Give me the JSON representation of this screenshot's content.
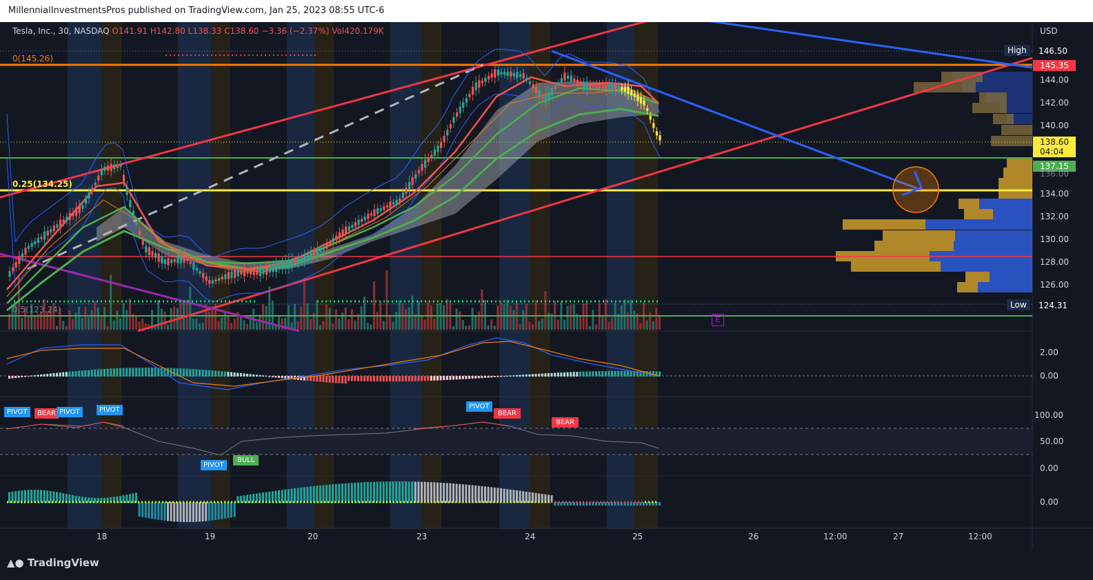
{
  "header": {
    "publish_line": "MillennialInvestmentsPros published on TradingView.com, Jan 25, 2023 08:55 UTC-6"
  },
  "symbol": {
    "name": "Tesla, Inc., 30, NASDAQ",
    "open": "O141.91",
    "high": "H142.80",
    "low": "L138.33",
    "close": "C138.60",
    "change": "−3.36 (−2.37%)",
    "volume": "Vol420.179K",
    "currency": "USD"
  },
  "fib_labels": {
    "level_0": "0(145.26)",
    "level_025": "0.25(134.25)",
    "level_05": "0.5(123.24)"
  },
  "price_axis": {
    "ticks": [
      "144.00",
      "142.00",
      "140.00",
      "136.00",
      "134.00",
      "132.00",
      "130.00",
      "128.00",
      "126.00"
    ],
    "high_label": "High",
    "high_value": "146.50",
    "level_145": "145.35",
    "current_price": "138.60",
    "countdown": "04:04",
    "level_137": "137.15",
    "low_label": "Low",
    "low_value": "124.31"
  },
  "macd_axis": [
    "2.00",
    "0.00"
  ],
  "rsi_axis": [
    "100.00",
    "50.00",
    "0.00"
  ],
  "osc_axis": [
    "0.00"
  ],
  "time_axis": [
    "18",
    "19",
    "20",
    "23",
    "24",
    "25",
    "26",
    "12:00",
    "27",
    "12:00"
  ],
  "signals": {
    "pivot": "PIVOT",
    "bear": "BEAR",
    "bull": "BULL"
  },
  "earnings_marker": "E",
  "footer": {
    "brand": "TradingView"
  },
  "colors": {
    "background": "#131722",
    "bull": "#26a69a",
    "bear": "#ef5350",
    "fib_orange": "#f57c00",
    "fib_yellow": "#ffeb3b",
    "trend_blue": "#2962ff",
    "trend_red": "#f23645",
    "green_line": "#4caf50",
    "pivot_blue": "#2196f3"
  }
}
